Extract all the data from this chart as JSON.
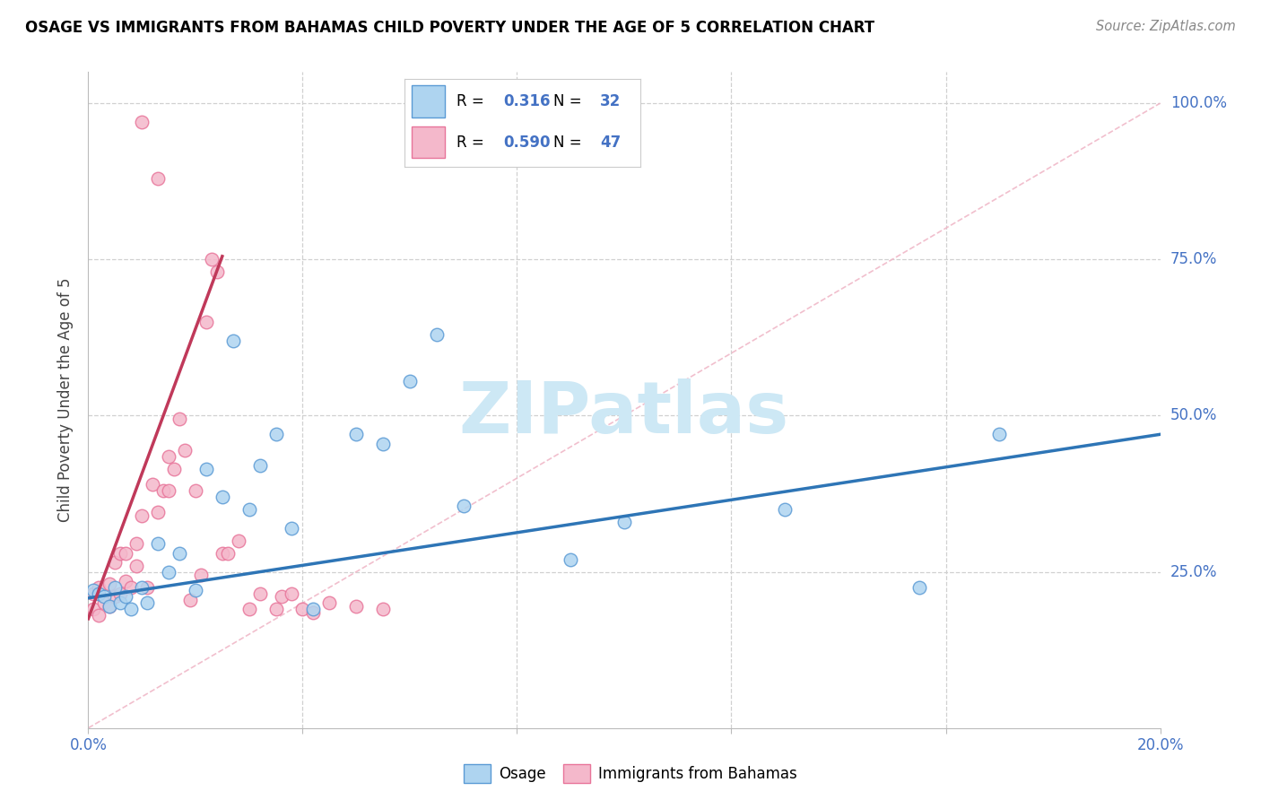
{
  "title": "OSAGE VS IMMIGRANTS FROM BAHAMAS CHILD POVERTY UNDER THE AGE OF 5 CORRELATION CHART",
  "source": "Source: ZipAtlas.com",
  "ylabel": "Child Poverty Under the Age of 5",
  "xlim": [
    0.0,
    0.2
  ],
  "ylim": [
    0.0,
    1.05
  ],
  "blue_color": "#aed4f0",
  "blue_edge_color": "#5b9bd5",
  "pink_color": "#f4b8cb",
  "pink_edge_color": "#e8759a",
  "blue_line_color": "#2e75b6",
  "pink_line_color": "#c0395a",
  "ref_line_color": "#f0b8c8",
  "watermark": "ZIPatlas",
  "watermark_color": "#cde8f5",
  "blue_scatter_x": [
    0.001,
    0.002,
    0.003,
    0.004,
    0.005,
    0.006,
    0.007,
    0.008,
    0.01,
    0.011,
    0.013,
    0.015,
    0.017,
    0.02,
    0.022,
    0.025,
    0.027,
    0.03,
    0.032,
    0.035,
    0.038,
    0.042,
    0.05,
    0.055,
    0.06,
    0.065,
    0.07,
    0.09,
    0.1,
    0.13,
    0.155,
    0.17
  ],
  "blue_scatter_y": [
    0.22,
    0.215,
    0.21,
    0.195,
    0.225,
    0.2,
    0.21,
    0.19,
    0.225,
    0.2,
    0.295,
    0.25,
    0.28,
    0.22,
    0.415,
    0.37,
    0.62,
    0.35,
    0.42,
    0.47,
    0.32,
    0.19,
    0.47,
    0.455,
    0.555,
    0.63,
    0.355,
    0.27,
    0.33,
    0.35,
    0.225,
    0.47
  ],
  "pink_scatter_x": [
    0.001,
    0.001,
    0.002,
    0.002,
    0.003,
    0.004,
    0.004,
    0.005,
    0.005,
    0.006,
    0.006,
    0.007,
    0.007,
    0.008,
    0.009,
    0.009,
    0.01,
    0.01,
    0.011,
    0.012,
    0.013,
    0.013,
    0.014,
    0.015,
    0.015,
    0.016,
    0.017,
    0.018,
    0.019,
    0.02,
    0.021,
    0.022,
    0.023,
    0.024,
    0.025,
    0.026,
    0.028,
    0.03,
    0.032,
    0.035,
    0.036,
    0.038,
    0.04,
    0.042,
    0.045,
    0.05,
    0.055
  ],
  "pink_scatter_y": [
    0.19,
    0.215,
    0.18,
    0.225,
    0.2,
    0.195,
    0.23,
    0.265,
    0.21,
    0.215,
    0.28,
    0.235,
    0.28,
    0.225,
    0.295,
    0.26,
    0.34,
    0.97,
    0.225,
    0.39,
    0.345,
    0.88,
    0.38,
    0.435,
    0.38,
    0.415,
    0.495,
    0.445,
    0.205,
    0.38,
    0.245,
    0.65,
    0.75,
    0.73,
    0.28,
    0.28,
    0.3,
    0.19,
    0.215,
    0.19,
    0.21,
    0.215,
    0.19,
    0.185,
    0.2,
    0.195,
    0.19
  ],
  "blue_trend_x": [
    0.0,
    0.2
  ],
  "blue_trend_y": [
    0.208,
    0.47
  ],
  "pink_trend_x": [
    0.0,
    0.025
  ],
  "pink_trend_y": [
    0.175,
    0.755
  ],
  "ref_line_x": [
    0.0,
    0.2
  ],
  "ref_line_y": [
    0.0,
    1.0
  ]
}
